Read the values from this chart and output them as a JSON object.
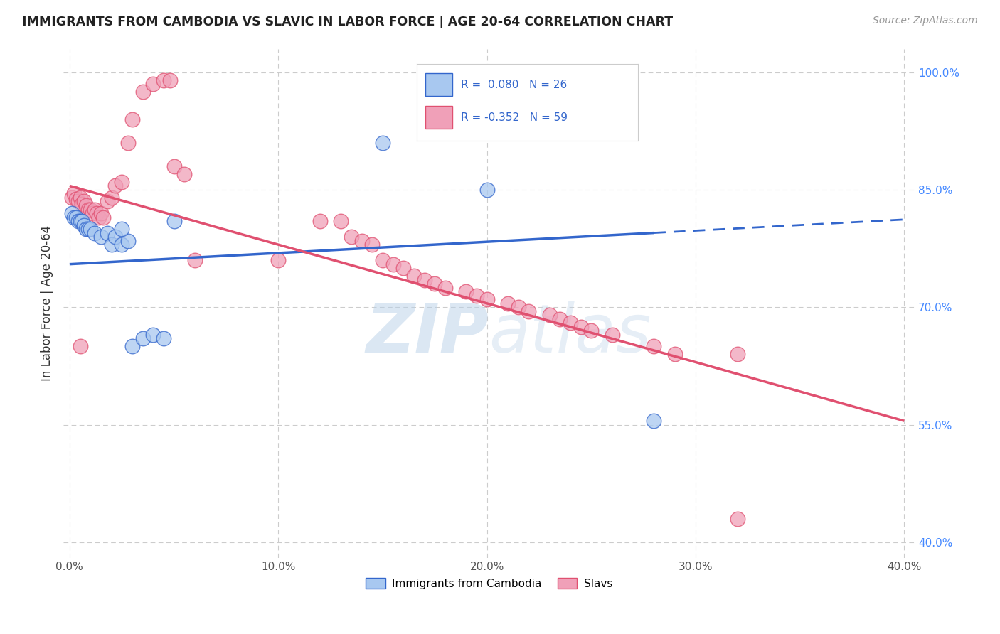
{
  "title": "IMMIGRANTS FROM CAMBODIA VS SLAVIC IN LABOR FORCE | AGE 20-64 CORRELATION CHART",
  "source": "Source: ZipAtlas.com",
  "ylabel": "In Labor Force | Age 20-64",
  "x_tick_labels": [
    "0.0%",
    "10.0%",
    "20.0%",
    "30.0%",
    "40.0%"
  ],
  "x_tick_vals": [
    0.0,
    0.1,
    0.2,
    0.3,
    0.4
  ],
  "y_tick_labels": [
    "40.0%",
    "55.0%",
    "70.0%",
    "85.0%",
    "100.0%"
  ],
  "y_tick_vals": [
    0.4,
    0.55,
    0.7,
    0.85,
    1.0
  ],
  "xlim": [
    -0.003,
    0.405
  ],
  "ylim": [
    0.38,
    1.03
  ],
  "legend_label1": "Immigrants from Cambodia",
  "legend_label2": "Slavs",
  "blue_color": "#A8C8F0",
  "pink_color": "#F0A0B8",
  "trend_blue": "#3366CC",
  "trend_pink": "#E05070",
  "watermark_zip": "ZIP",
  "watermark_atlas": "atlas",
  "blue_trend_x0": 0.0,
  "blue_trend_y0": 0.755,
  "blue_trend_x1": 0.28,
  "blue_trend_y1": 0.795,
  "blue_trend_xd": 0.4,
  "blue_trend_yd": 0.812,
  "pink_trend_x0": 0.0,
  "pink_trend_y0": 0.855,
  "pink_trend_x1": 0.4,
  "pink_trend_y1": 0.555,
  "blue_scatter_x": [
    0.001,
    0.002,
    0.003,
    0.004,
    0.005,
    0.006,
    0.007,
    0.008,
    0.009,
    0.01,
    0.012,
    0.015,
    0.018,
    0.02,
    0.022,
    0.025,
    0.028,
    0.03,
    0.035,
    0.04,
    0.045,
    0.05,
    0.15,
    0.2,
    0.28,
    0.025
  ],
  "blue_scatter_y": [
    0.82,
    0.815,
    0.815,
    0.81,
    0.81,
    0.81,
    0.805,
    0.8,
    0.8,
    0.8,
    0.795,
    0.79,
    0.795,
    0.78,
    0.79,
    0.78,
    0.785,
    0.65,
    0.66,
    0.665,
    0.66,
    0.81,
    0.91,
    0.85,
    0.555,
    0.8
  ],
  "pink_scatter_x": [
    0.001,
    0.002,
    0.003,
    0.004,
    0.005,
    0.006,
    0.007,
    0.008,
    0.009,
    0.01,
    0.011,
    0.012,
    0.013,
    0.014,
    0.015,
    0.016,
    0.018,
    0.02,
    0.022,
    0.025,
    0.028,
    0.03,
    0.035,
    0.04,
    0.045,
    0.048,
    0.05,
    0.055,
    0.06,
    0.1,
    0.12,
    0.13,
    0.135,
    0.14,
    0.145,
    0.15,
    0.155,
    0.16,
    0.165,
    0.17,
    0.175,
    0.18,
    0.19,
    0.195,
    0.2,
    0.21,
    0.215,
    0.22,
    0.23,
    0.235,
    0.24,
    0.245,
    0.25,
    0.26,
    0.28,
    0.29,
    0.32,
    0.005,
    0.32
  ],
  "pink_scatter_y": [
    0.84,
    0.845,
    0.838,
    0.835,
    0.84,
    0.832,
    0.835,
    0.83,
    0.825,
    0.825,
    0.82,
    0.825,
    0.82,
    0.815,
    0.82,
    0.815,
    0.835,
    0.84,
    0.855,
    0.86,
    0.91,
    0.94,
    0.975,
    0.985,
    0.99,
    0.99,
    0.88,
    0.87,
    0.76,
    0.76,
    0.81,
    0.81,
    0.79,
    0.785,
    0.78,
    0.76,
    0.755,
    0.75,
    0.74,
    0.735,
    0.73,
    0.725,
    0.72,
    0.715,
    0.71,
    0.705,
    0.7,
    0.695,
    0.69,
    0.685,
    0.68,
    0.675,
    0.67,
    0.665,
    0.65,
    0.64,
    0.64,
    0.65,
    0.43
  ]
}
